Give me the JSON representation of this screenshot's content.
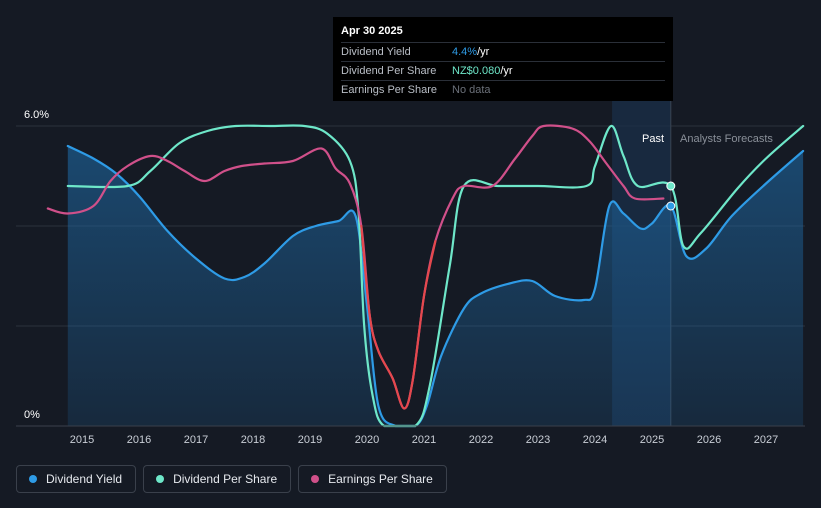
{
  "tooltip": {
    "date": "Apr 30 2025",
    "rows": [
      {
        "label": "Dividend Yield",
        "value": "4.4%",
        "unit": " /yr",
        "color": "#2e9be6"
      },
      {
        "label": "Dividend Per Share",
        "value": "NZ$0.080",
        "unit": " /yr",
        "color": "#6ee7c9"
      },
      {
        "label": "Earnings Per Share",
        "value": "No data",
        "unit": "",
        "color": "#6b7079"
      }
    ]
  },
  "regions": {
    "past": "Past",
    "forecast": "Analysts Forecasts"
  },
  "legend": [
    {
      "label": "Dividend Yield",
      "color": "#2e9be6"
    },
    {
      "label": "Dividend Per Share",
      "color": "#6ee7c9"
    },
    {
      "label": "Earnings Per Share",
      "color": "#d0508a"
    }
  ],
  "chart_data": {
    "type": "line",
    "y_tick_labels": [
      "6.0%",
      "0%"
    ],
    "ylim": [
      0,
      6.0
    ],
    "xlim": [
      2014.4,
      2027.65
    ],
    "x_ticks": [
      2015,
      2016,
      2017,
      2018,
      2019,
      2020,
      2021,
      2022,
      2023,
      2024,
      2025,
      2026,
      2027
    ],
    "grid": true,
    "past_end": 2025.33,
    "highlight_start": 2024.3,
    "series": [
      {
        "name": "Dividend Yield",
        "color": "#2e9be6",
        "filled": true,
        "points": [
          [
            2014.75,
            5.6
          ],
          [
            2015.2,
            5.35
          ],
          [
            2015.6,
            5.05
          ],
          [
            2016.0,
            4.6
          ],
          [
            2016.5,
            3.9
          ],
          [
            2017.0,
            3.35
          ],
          [
            2017.5,
            2.95
          ],
          [
            2017.85,
            2.98
          ],
          [
            2018.2,
            3.25
          ],
          [
            2018.7,
            3.8
          ],
          [
            2019.1,
            4.0
          ],
          [
            2019.5,
            4.1
          ],
          [
            2019.8,
            4.2
          ],
          [
            2020.0,
            2.4
          ],
          [
            2020.2,
            0.4
          ],
          [
            2020.5,
            0.0
          ],
          [
            2020.85,
            0.0
          ],
          [
            2021.05,
            0.4
          ],
          [
            2021.3,
            1.4
          ],
          [
            2021.7,
            2.35
          ],
          [
            2022.0,
            2.65
          ],
          [
            2022.5,
            2.85
          ],
          [
            2022.9,
            2.9
          ],
          [
            2023.3,
            2.6
          ],
          [
            2023.8,
            2.52
          ],
          [
            2024.0,
            2.75
          ],
          [
            2024.25,
            4.4
          ],
          [
            2024.5,
            4.25
          ],
          [
            2024.8,
            3.95
          ],
          [
            2025.0,
            4.05
          ],
          [
            2025.33,
            4.4
          ],
          [
            2025.6,
            3.4
          ],
          [
            2025.95,
            3.55
          ],
          [
            2026.4,
            4.2
          ],
          [
            2027.0,
            4.85
          ],
          [
            2027.65,
            5.5
          ]
        ]
      },
      {
        "name": "Dividend Per Share",
        "color": "#6ee7c9",
        "filled": false,
        "points": [
          [
            2014.75,
            4.8
          ],
          [
            2015.8,
            4.8
          ],
          [
            2016.2,
            5.1
          ],
          [
            2016.7,
            5.65
          ],
          [
            2017.2,
            5.9
          ],
          [
            2017.7,
            6.0
          ],
          [
            2018.3,
            6.0
          ],
          [
            2018.9,
            6.0
          ],
          [
            2019.3,
            5.85
          ],
          [
            2019.7,
            5.3
          ],
          [
            2019.85,
            4.3
          ],
          [
            2019.95,
            2.0
          ],
          [
            2020.1,
            0.6
          ],
          [
            2020.3,
            0.0
          ],
          [
            2020.85,
            0.0
          ],
          [
            2021.1,
            0.8
          ],
          [
            2021.45,
            3.2
          ],
          [
            2021.7,
            4.8
          ],
          [
            2022.3,
            4.8
          ],
          [
            2023.0,
            4.8
          ],
          [
            2023.85,
            4.8
          ],
          [
            2024.0,
            5.2
          ],
          [
            2024.28,
            6.0
          ],
          [
            2024.5,
            5.4
          ],
          [
            2024.75,
            4.8
          ],
          [
            2025.33,
            4.8
          ],
          [
            2025.55,
            3.6
          ],
          [
            2025.85,
            3.85
          ],
          [
            2026.5,
            4.75
          ],
          [
            2027.0,
            5.35
          ],
          [
            2027.65,
            6.0
          ]
        ]
      },
      {
        "name": "Earnings Per Share",
        "color": "#d0508a",
        "filled": false,
        "points": [
          [
            2014.4,
            4.35
          ],
          [
            2014.75,
            4.25
          ],
          [
            2015.2,
            4.4
          ],
          [
            2015.5,
            4.9
          ],
          [
            2015.8,
            5.2
          ],
          [
            2016.2,
            5.4
          ],
          [
            2016.5,
            5.3
          ],
          [
            2016.8,
            5.1
          ],
          [
            2017.15,
            4.9
          ],
          [
            2017.5,
            5.1
          ],
          [
            2017.8,
            5.2
          ],
          [
            2018.2,
            5.25
          ],
          [
            2018.7,
            5.3
          ],
          [
            2019.2,
            5.55
          ],
          [
            2019.45,
            5.15
          ],
          [
            2019.7,
            4.85
          ],
          [
            2019.9,
            4.0
          ],
          [
            2020.05,
            2.2
          ],
          [
            2020.2,
            1.5
          ],
          [
            2020.45,
            0.95
          ],
          [
            2020.65,
            0.35
          ],
          [
            2020.8,
            0.9
          ],
          [
            2021.0,
            2.6
          ],
          [
            2021.2,
            3.7
          ],
          [
            2021.5,
            4.55
          ],
          [
            2021.7,
            4.8
          ],
          [
            2022.2,
            4.8
          ],
          [
            2022.6,
            5.35
          ],
          [
            2022.9,
            5.8
          ],
          [
            2023.1,
            6.0
          ],
          [
            2023.6,
            5.95
          ],
          [
            2023.9,
            5.7
          ],
          [
            2024.2,
            5.25
          ],
          [
            2024.5,
            4.8
          ],
          [
            2024.7,
            4.55
          ],
          [
            2025.2,
            4.55
          ]
        ]
      }
    ],
    "markers": [
      {
        "series": "Dividend Yield",
        "x": 2025.33,
        "y": 4.4
      },
      {
        "series": "Dividend Per Share",
        "x": 2025.33,
        "y": 4.8
      }
    ]
  }
}
